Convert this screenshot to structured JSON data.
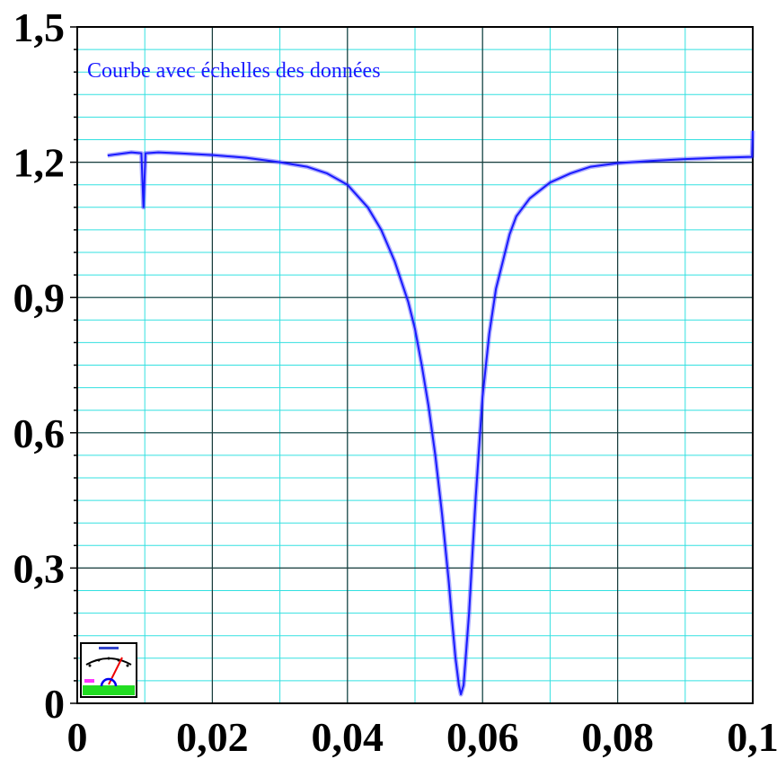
{
  "chart_data": {
    "type": "line",
    "title": "Courbe avec échelles des données",
    "xlabel": "",
    "ylabel": "",
    "xlim": [
      0,
      0.1
    ],
    "ylim": [
      0,
      1.5
    ],
    "grid": true,
    "x_ticks": [
      "0",
      "0,02",
      "0,04",
      "0,06",
      "0,08",
      "0,1"
    ],
    "y_ticks": [
      "0",
      "0,3",
      "0,6",
      "0,9",
      "1,2",
      "1,5"
    ],
    "colors": {
      "curve": "#1a1aff",
      "minor_grid": "#33e0e0",
      "major_grid": "#1a3a3a"
    },
    "series": [
      {
        "x": [
          0.0045,
          0.006,
          0.008,
          0.0095,
          0.0098,
          0.0101,
          0.012,
          0.015,
          0.02,
          0.025,
          0.03,
          0.034,
          0.037,
          0.04,
          0.043,
          0.045,
          0.047,
          0.049,
          0.05,
          0.051,
          0.052,
          0.053,
          0.054,
          0.055,
          0.0555,
          0.056,
          0.0565,
          0.0568,
          0.0572,
          0.0575,
          0.058,
          0.0585,
          0.059,
          0.06,
          0.061,
          0.062,
          0.063,
          0.064,
          0.065,
          0.067,
          0.07,
          0.073,
          0.076,
          0.08,
          0.085,
          0.09,
          0.095,
          0.0999,
          0.1
        ],
        "y": [
          1.215,
          1.218,
          1.222,
          1.22,
          1.1,
          1.22,
          1.222,
          1.22,
          1.216,
          1.21,
          1.2,
          1.19,
          1.175,
          1.15,
          1.1,
          1.05,
          0.98,
          0.89,
          0.83,
          0.75,
          0.66,
          0.55,
          0.42,
          0.27,
          0.18,
          0.1,
          0.04,
          0.02,
          0.04,
          0.1,
          0.2,
          0.33,
          0.46,
          0.68,
          0.82,
          0.92,
          0.98,
          1.04,
          1.08,
          1.12,
          1.155,
          1.175,
          1.19,
          1.198,
          1.203,
          1.207,
          1.21,
          1.212,
          1.27
        ]
      }
    ]
  }
}
